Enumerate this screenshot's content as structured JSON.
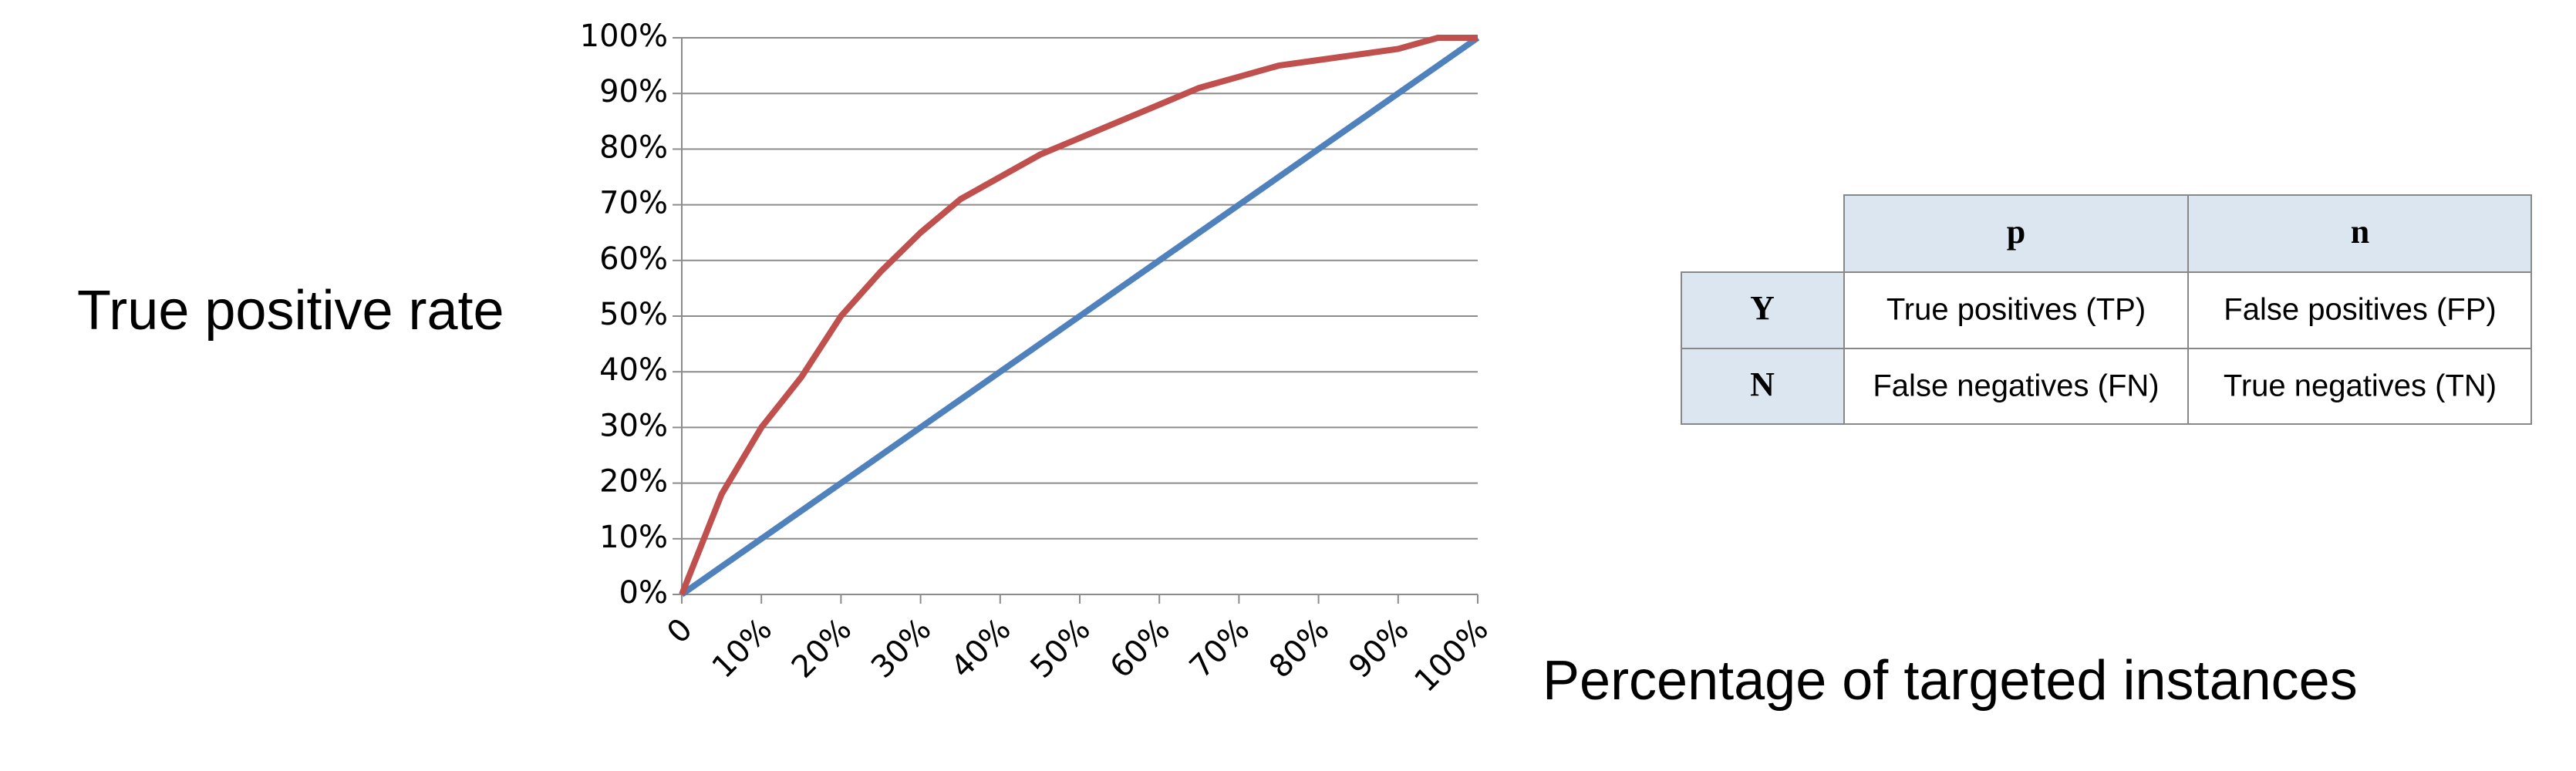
{
  "chart_data": {
    "type": "line",
    "ylabel": "True positive rate",
    "xlabel": "Percentage of targeted instances",
    "x": [
      0,
      5,
      10,
      15,
      20,
      25,
      30,
      35,
      40,
      45,
      50,
      55,
      60,
      65,
      70,
      75,
      80,
      85,
      90,
      95,
      100
    ],
    "series": [
      {
        "color": "#4f81bd",
        "values": [
          0,
          5,
          10,
          15,
          20,
          25,
          30,
          35,
          40,
          45,
          50,
          55,
          60,
          65,
          70,
          75,
          80,
          85,
          90,
          95,
          100
        ]
      },
      {
        "color": "#c0504d",
        "values": [
          0,
          18,
          30,
          39,
          50,
          58,
          65,
          71,
          75,
          79,
          82,
          85,
          88,
          91,
          93,
          95,
          96,
          97,
          98,
          100,
          100
        ]
      }
    ],
    "xlim": [
      0,
      100
    ],
    "ylim": [
      0,
      100
    ],
    "xticks": [
      0,
      {
        "value": 10,
        "label": "10%"
      },
      {
        "value": 20,
        "label": "20%"
      },
      {
        "value": 30,
        "label": "30%"
      },
      {
        "value": 40,
        "label": "40%"
      },
      {
        "value": 50,
        "label": "50%"
      },
      {
        "value": 60,
        "label": "60%"
      },
      {
        "value": 70,
        "label": "70%"
      },
      {
        "value": 80,
        "label": "80%"
      },
      {
        "value": 90,
        "label": "90%"
      },
      {
        "value": 100,
        "label": "100%"
      }
    ],
    "yticks": [
      {
        "value": 0,
        "label": "0%"
      },
      {
        "value": 10,
        "label": "10%"
      },
      {
        "value": 20,
        "label": "20%"
      },
      {
        "value": 30,
        "label": "30%"
      },
      {
        "value": 40,
        "label": "40%"
      },
      {
        "value": 50,
        "label": "50%"
      },
      {
        "value": 60,
        "label": "60%"
      },
      {
        "value": 70,
        "label": "70%"
      },
      {
        "value": 80,
        "label": "80%"
      },
      {
        "value": 90,
        "label": "90%"
      },
      {
        "value": 100,
        "label": "100%"
      }
    ],
    "grid": true
  },
  "table": {
    "columns": [
      "p",
      "n"
    ],
    "rows": [
      {
        "label": "Y",
        "cells": [
          "True positives (TP)",
          "False positives (FP)"
        ]
      },
      {
        "label": "N",
        "cells": [
          "False negatives (FN)",
          "True negatives (TN)"
        ]
      }
    ]
  }
}
